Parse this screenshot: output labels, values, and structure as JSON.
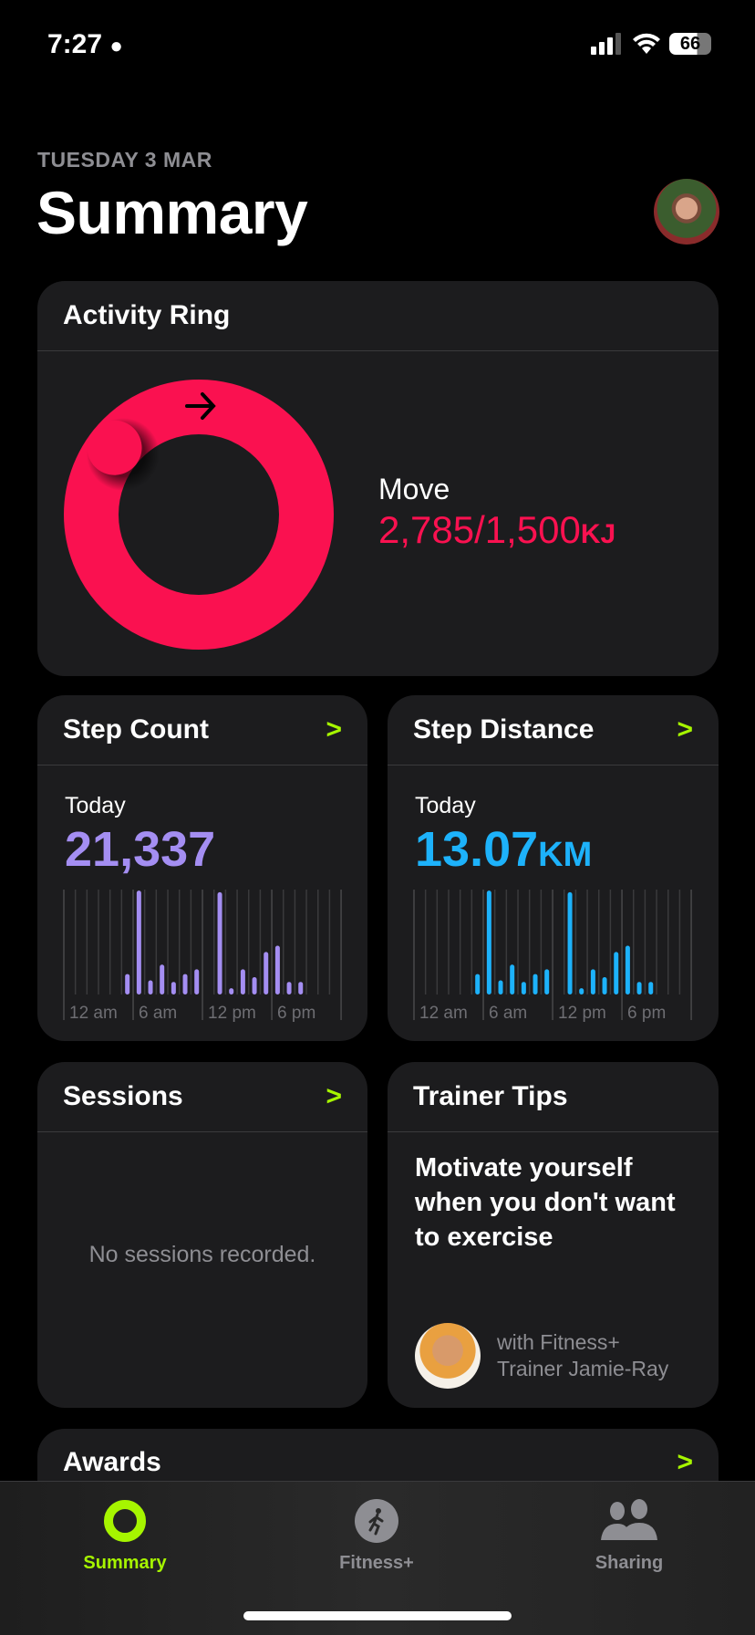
{
  "status": {
    "time": "7:27",
    "battery": "66"
  },
  "header": {
    "date": "TUESDAY 3 MAR",
    "title": "Summary"
  },
  "activity": {
    "title": "Activity Ring",
    "move_label": "Move",
    "move_value": "2,785/1,500",
    "move_unit": "KJ",
    "move_current": 2785,
    "move_goal": 1500,
    "ring_color": "#fa1150"
  },
  "step_count": {
    "title": "Step Count",
    "period": "Today",
    "value": "21,337",
    "color": "#a48ef2"
  },
  "step_distance": {
    "title": "Step Distance",
    "period": "Today",
    "value": "13.07",
    "unit": "KM",
    "color": "#1db2fb"
  },
  "chart_data": {
    "type": "bar",
    "x_labels": [
      "12 am",
      "6 am",
      "12 pm",
      "6 pm"
    ],
    "hours": [
      0,
      1,
      2,
      3,
      4,
      5,
      6,
      7,
      8,
      9,
      10,
      11,
      12,
      13,
      14,
      15,
      16,
      17,
      18,
      19,
      20,
      21,
      22,
      23
    ],
    "relative_values": [
      0,
      0,
      0,
      0,
      0,
      0.13,
      0.66,
      0.09,
      0.19,
      0.08,
      0.13,
      0.16,
      0,
      0.65,
      0.04,
      0.16,
      0.11,
      0.27,
      0.31,
      0.08,
      0.08,
      0,
      0,
      0
    ]
  },
  "sessions": {
    "title": "Sessions",
    "empty": "No sessions recorded."
  },
  "trainer": {
    "title": "Trainer Tips",
    "headline": "Motivate yourself when you don't want to exercise",
    "line1": "with Fitness+",
    "line2": "Trainer Jamie-Ray"
  },
  "awards": {
    "title": "Awards"
  },
  "tabs": [
    {
      "label": "Summary",
      "icon": "activity-ring-icon"
    },
    {
      "label": "Fitness+",
      "icon": "fitness-runner-icon"
    },
    {
      "label": "Sharing",
      "icon": "people-icon"
    }
  ],
  "accent": "#a6f500"
}
